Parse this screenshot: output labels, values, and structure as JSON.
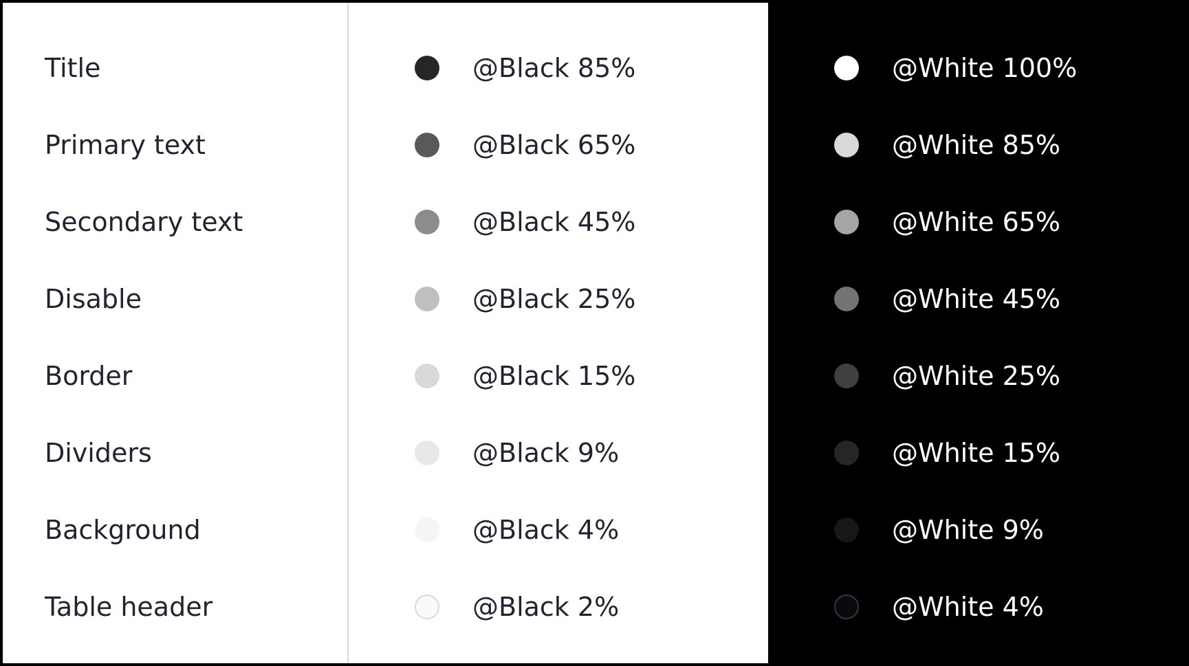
{
  "labels": [
    "Title",
    "Primary text",
    "Secondary text",
    "Disable",
    "Border",
    "Dividers",
    "Background",
    "Table header"
  ],
  "light": [
    {
      "text": "@Black 85%",
      "color": "#262626"
    },
    {
      "text": "@Black 65%",
      "color": "#595959"
    },
    {
      "text": "@Black 45%",
      "color": "#8c8c8c"
    },
    {
      "text": "@Black 25%",
      "color": "#bfbfbf"
    },
    {
      "text": "@Black 15%",
      "color": "#d9d9d9"
    },
    {
      "text": "@Black 9%",
      "color": "#e8e8e8"
    },
    {
      "text": "@Black 4%",
      "color": "#f5f5f5"
    },
    {
      "text": "@Black 2%",
      "color": "#fafafa"
    }
  ],
  "dark": [
    {
      "text": "@White 100%",
      "color": "#ffffff"
    },
    {
      "text": "@White 85%",
      "color": "#d9d9d9"
    },
    {
      "text": "@White 65%",
      "color": "#a6a6a6"
    },
    {
      "text": "@White 45%",
      "color": "#737373"
    },
    {
      "text": "@White 25%",
      "color": "#404040"
    },
    {
      "text": "@White 15%",
      "color": "#262626"
    },
    {
      "text": "@White 9%",
      "color": "#171717"
    },
    {
      "text": "@White 4%",
      "color": "#0a0a0a"
    }
  ]
}
